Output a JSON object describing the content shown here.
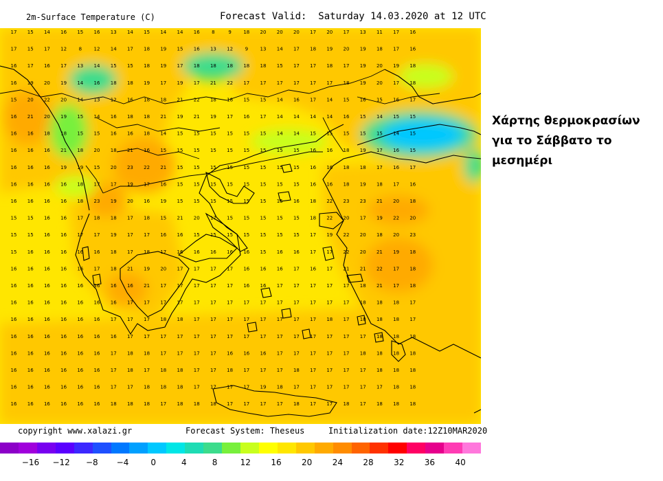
{
  "header": {
    "title": "2m-Surface Temperature (C)",
    "forecast": "Forecast Valid:  Saturday 14.03.2020 at 12 UTC"
  },
  "footer": {
    "copyright": "copyright www.xalazi.gr",
    "system": "Forecast System: Theseus",
    "init": "Initialization date:12Z10MAR2020"
  },
  "caption": "Χάρτης θερμοκρασίων για το Σάββατο το μεσημέρι",
  "colorbar": {
    "colors": [
      "#8c00c8",
      "#a000dc",
      "#7800f0",
      "#5a00ff",
      "#3c28ff",
      "#1e50ff",
      "#0078ff",
      "#00a0ff",
      "#00c8ff",
      "#00e6e6",
      "#1edcb4",
      "#3cdc8c",
      "#78f03c",
      "#c8ff1e",
      "#ffff00",
      "#ffe600",
      "#ffc800",
      "#ffaa00",
      "#ff8c00",
      "#ff6400",
      "#ff3200",
      "#ff0000",
      "#ff0064",
      "#e6008c",
      "#ff3cb4",
      "#ff78dc"
    ],
    "ticks": [
      "−16",
      "−12",
      "−8",
      "−4",
      "0",
      "4",
      "8",
      "12",
      "16",
      "20",
      "24",
      "28",
      "32",
      "36",
      "40"
    ]
  },
  "map": {
    "grid_rows": [
      [
        17,
        15,
        14,
        16,
        15,
        16,
        13,
        14,
        15,
        14,
        14,
        16,
        8,
        9,
        18,
        20,
        20,
        20,
        17,
        20,
        17,
        13,
        11,
        17,
        16
      ],
      [
        17,
        15,
        17,
        12,
        8,
        12,
        14,
        17,
        18,
        19,
        15,
        16,
        13,
        12,
        9,
        13,
        14,
        17,
        18,
        19,
        20,
        19,
        18,
        17,
        16
      ],
      [
        16,
        17,
        16,
        17,
        13,
        14,
        15,
        15,
        18,
        19,
        17,
        18,
        18,
        18,
        18,
        18,
        15,
        17,
        17,
        18,
        17,
        19,
        20,
        19,
        18
      ],
      [
        16,
        19,
        20,
        19,
        14,
        16,
        18,
        18,
        19,
        17,
        19,
        17,
        21,
        22,
        17,
        17,
        17,
        17,
        17,
        17,
        18,
        19,
        20,
        17,
        18
      ],
      [
        15,
        20,
        22,
        20,
        14,
        13,
        12,
        16,
        18,
        18,
        21,
        22,
        18,
        18,
        15,
        15,
        14,
        16,
        17,
        14,
        15,
        16,
        15,
        16,
        17
      ],
      [
        16,
        21,
        20,
        19,
        15,
        14,
        16,
        18,
        18,
        21,
        19,
        21,
        19,
        17,
        16,
        17,
        14,
        14,
        14,
        14,
        16,
        15,
        14,
        15,
        15
      ],
      [
        16,
        16,
        18,
        18,
        15,
        15,
        16,
        16,
        18,
        14,
        15,
        15,
        15,
        15,
        15,
        15,
        14,
        14,
        15,
        15,
        15,
        15,
        15,
        14,
        15
      ],
      [
        16,
        16,
        16,
        21,
        18,
        20,
        18,
        21,
        16,
        15,
        15,
        15,
        15,
        15,
        15,
        15,
        15,
        15,
        16,
        16,
        18,
        19,
        17,
        16,
        15
      ],
      [
        16,
        16,
        16,
        19,
        19,
        15,
        20,
        23,
        22,
        21,
        15,
        15,
        15,
        15,
        15,
        15,
        15,
        15,
        16,
        16,
        18,
        18,
        17,
        16,
        17
      ],
      [
        16,
        16,
        16,
        16,
        18,
        17,
        17,
        19,
        17,
        16,
        15,
        15,
        15,
        15,
        15,
        15,
        15,
        15,
        16,
        16,
        18,
        19,
        18,
        17,
        16
      ],
      [
        16,
        16,
        16,
        16,
        18,
        23,
        19,
        20,
        16,
        19,
        15,
        15,
        15,
        15,
        15,
        15,
        15,
        16,
        18,
        22,
        23,
        23,
        21,
        20,
        18
      ],
      [
        15,
        15,
        16,
        16,
        17,
        18,
        18,
        17,
        18,
        15,
        21,
        20,
        17,
        15,
        15,
        15,
        15,
        15,
        18,
        22,
        20,
        17,
        19,
        22,
        20
      ],
      [
        15,
        15,
        16,
        16,
        17,
        17,
        19,
        17,
        17,
        16,
        16,
        15,
        15,
        15,
        15,
        15,
        15,
        15,
        17,
        19,
        22,
        20,
        18,
        20,
        23
      ],
      [
        15,
        16,
        16,
        16,
        16,
        16,
        18,
        17,
        18,
        17,
        16,
        16,
        16,
        16,
        16,
        15,
        16,
        16,
        17,
        17,
        22,
        20,
        21,
        19,
        18
      ],
      [
        16,
        16,
        16,
        16,
        16,
        17,
        18,
        21,
        19,
        20,
        17,
        17,
        17,
        17,
        16,
        16,
        16,
        17,
        16,
        17,
        21,
        21,
        22,
        17,
        18
      ],
      [
        16,
        16,
        16,
        16,
        16,
        16,
        16,
        16,
        21,
        17,
        17,
        17,
        17,
        17,
        16,
        16,
        17,
        17,
        17,
        17,
        17,
        18,
        21,
        17,
        18
      ],
      [
        16,
        16,
        16,
        16,
        16,
        16,
        16,
        17,
        17,
        17,
        17,
        17,
        17,
        17,
        17,
        17,
        17,
        17,
        17,
        17,
        17,
        18,
        18,
        18,
        17
      ],
      [
        16,
        16,
        16,
        16,
        16,
        16,
        17,
        17,
        17,
        18,
        18,
        17,
        17,
        17,
        17,
        17,
        17,
        17,
        17,
        18,
        17,
        18,
        18,
        18,
        17
      ],
      [
        16,
        16,
        16,
        16,
        16,
        16,
        16,
        17,
        17,
        17,
        17,
        17,
        17,
        17,
        17,
        17,
        17,
        17,
        17,
        17,
        17,
        17,
        18,
        18,
        18
      ],
      [
        16,
        16,
        16,
        16,
        16,
        16,
        17,
        18,
        18,
        17,
        17,
        17,
        17,
        16,
        16,
        16,
        17,
        17,
        17,
        17,
        17,
        18,
        18,
        18,
        18
      ],
      [
        16,
        16,
        16,
        16,
        16,
        16,
        17,
        18,
        17,
        18,
        18,
        17,
        17,
        18,
        17,
        17,
        17,
        18,
        17,
        17,
        17,
        17,
        18,
        18,
        18
      ],
      [
        16,
        16,
        16,
        16,
        16,
        16,
        17,
        17,
        18,
        18,
        18,
        17,
        17,
        17,
        17,
        19,
        18,
        17,
        17,
        17,
        17,
        17,
        17,
        18,
        18
      ],
      [
        16,
        16,
        16,
        16,
        16,
        16,
        18,
        18,
        18,
        17,
        18,
        18,
        18,
        17,
        17,
        17,
        17,
        18,
        17,
        17,
        18,
        17,
        18,
        18,
        18
      ]
    ]
  }
}
